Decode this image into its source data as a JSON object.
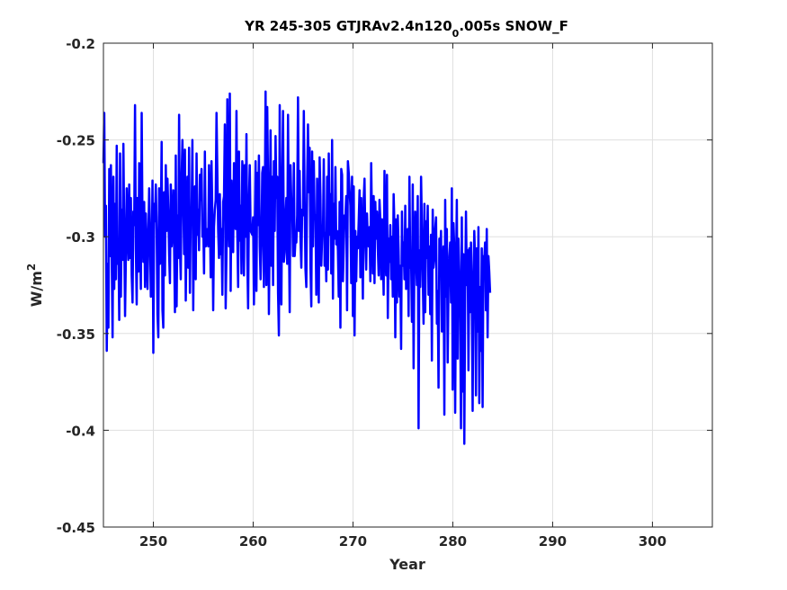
{
  "chart_data": {
    "type": "line",
    "title_parts": {
      "main": "YR 245-305 GTJRAv2.4n120",
      "subscript": "0",
      "rest": ".005s SNOW_F"
    },
    "xlabel": "Year",
    "ylabel_base": "W/m",
    "ylabel_sup": "2",
    "xlim": [
      245,
      306
    ],
    "ylim": [
      -0.45,
      -0.2
    ],
    "xticks": [
      250,
      260,
      270,
      280,
      290,
      300
    ],
    "xtick_labels": [
      "250",
      "260",
      "270",
      "280",
      "290",
      "300"
    ],
    "yticks": [
      -0.45,
      -0.4,
      -0.35,
      -0.3,
      -0.25,
      -0.2
    ],
    "ytick_labels": [
      "-0.45",
      "-0.4",
      "-0.35",
      "-0.3",
      "-0.25",
      "-0.2"
    ],
    "grid": true,
    "series": [
      {
        "color": "#0000ff",
        "x_start": 245,
        "x_step": 0.0833,
        "values": [
          -0.262,
          -0.236,
          -0.3,
          -0.284,
          -0.359,
          -0.314,
          -0.347,
          -0.265,
          -0.31,
          -0.263,
          -0.312,
          -0.352,
          -0.269,
          -0.327,
          -0.283,
          -0.322,
          -0.253,
          -0.314,
          -0.302,
          -0.343,
          -0.257,
          -0.331,
          -0.286,
          -0.312,
          -0.252,
          -0.297,
          -0.341,
          -0.31,
          -0.275,
          -0.298,
          -0.312,
          -0.273,
          -0.311,
          -0.28,
          -0.32,
          -0.334,
          -0.287,
          -0.294,
          -0.232,
          -0.306,
          -0.335,
          -0.28,
          -0.318,
          -0.262,
          -0.303,
          -0.327,
          -0.236,
          -0.296,
          -0.313,
          -0.282,
          -0.326,
          -0.288,
          -0.304,
          -0.327,
          -0.302,
          -0.275,
          -0.297,
          -0.331,
          -0.317,
          -0.271,
          -0.36,
          -0.283,
          -0.292,
          -0.273,
          -0.296,
          -0.34,
          -0.352,
          -0.275,
          -0.314,
          -0.294,
          -0.251,
          -0.338,
          -0.347,
          -0.277,
          -0.32,
          -0.263,
          -0.297,
          -0.27,
          -0.286,
          -0.309,
          -0.324,
          -0.273,
          -0.305,
          -0.297,
          -0.276,
          -0.305,
          -0.339,
          -0.258,
          -0.336,
          -0.289,
          -0.311,
          -0.237,
          -0.305,
          -0.322,
          -0.27,
          -0.25,
          -0.279,
          -0.309,
          -0.255,
          -0.333,
          -0.296,
          -0.269,
          -0.316,
          -0.254,
          -0.329,
          -0.285,
          -0.289,
          -0.25,
          -0.338,
          -0.288,
          -0.274,
          -0.322,
          -0.257,
          -0.299,
          -0.286,
          -0.307,
          -0.268,
          -0.281,
          -0.265,
          -0.3,
          -0.292,
          -0.319,
          -0.256,
          -0.305,
          -0.301,
          -0.296,
          -0.305,
          -0.263,
          -0.289,
          -0.321,
          -0.261,
          -0.289,
          -0.338,
          -0.295,
          -0.286,
          -0.281,
          -0.236,
          -0.267,
          -0.297,
          -0.311,
          -0.278,
          -0.309,
          -0.296,
          -0.33,
          -0.282,
          -0.279,
          -0.242,
          -0.337,
          -0.307,
          -0.229,
          -0.288,
          -0.305,
          -0.226,
          -0.328,
          -0.271,
          -0.291,
          -0.308,
          -0.262,
          -0.275,
          -0.296,
          -0.235,
          -0.298,
          -0.326,
          -0.256,
          -0.302,
          -0.284,
          -0.319,
          -0.261,
          -0.267,
          -0.32,
          -0.263,
          -0.3,
          -0.247,
          -0.31,
          -0.337,
          -0.282,
          -0.263,
          -0.297,
          -0.298,
          -0.299,
          -0.29,
          -0.335,
          -0.296,
          -0.261,
          -0.328,
          -0.267,
          -0.294,
          -0.258,
          -0.305,
          -0.322,
          -0.304,
          -0.267,
          -0.264,
          -0.326,
          -0.289,
          -0.225,
          -0.325,
          -0.233,
          -0.273,
          -0.34,
          -0.295,
          -0.245,
          -0.315,
          -0.269,
          -0.325,
          -0.261,
          -0.297,
          -0.248,
          -0.28,
          -0.269,
          -0.329,
          -0.351,
          -0.232,
          -0.315,
          -0.335,
          -0.267,
          -0.235,
          -0.313,
          -0.308,
          -0.289,
          -0.28,
          -0.314,
          -0.237,
          -0.295,
          -0.339,
          -0.263,
          -0.282,
          -0.282,
          -0.31,
          -0.262,
          -0.31,
          -0.301,
          -0.303,
          -0.289,
          -0.228,
          -0.297,
          -0.266,
          -0.301,
          -0.316,
          -0.286,
          -0.289,
          -0.235,
          -0.282,
          -0.317,
          -0.326,
          -0.271,
          -0.242,
          -0.277,
          -0.254,
          -0.315,
          -0.336,
          -0.256,
          -0.305,
          -0.261,
          -0.291,
          -0.289,
          -0.33,
          -0.27,
          -0.302,
          -0.334,
          -0.259,
          -0.279,
          -0.315,
          -0.3,
          -0.299,
          -0.26,
          -0.315,
          -0.298,
          -0.323,
          -0.269,
          -0.317,
          -0.257,
          -0.299,
          -0.278,
          -0.319,
          -0.25,
          -0.332,
          -0.283,
          -0.301,
          -0.264,
          -0.304,
          -0.297,
          -0.307,
          -0.331,
          -0.282,
          -0.347,
          -0.265,
          -0.268,
          -0.323,
          -0.305,
          -0.289,
          -0.29,
          -0.279,
          -0.338,
          -0.261,
          -0.267,
          -0.276,
          -0.284,
          -0.324,
          -0.269,
          -0.341,
          -0.274,
          -0.351,
          -0.297,
          -0.323,
          -0.3,
          -0.306,
          -0.292,
          -0.276,
          -0.321,
          -0.28,
          -0.303,
          -0.332,
          -0.281,
          -0.27,
          -0.302,
          -0.317,
          -0.288,
          -0.303,
          -0.305,
          -0.295,
          -0.323,
          -0.262,
          -0.294,
          -0.319,
          -0.279,
          -0.324,
          -0.282,
          -0.301,
          -0.287,
          -0.306,
          -0.32,
          -0.281,
          -0.291,
          -0.322,
          -0.291,
          -0.308,
          -0.33,
          -0.266,
          -0.307,
          -0.32,
          -0.268,
          -0.342,
          -0.301,
          -0.313,
          -0.294,
          -0.322,
          -0.3,
          -0.331,
          -0.278,
          -0.295,
          -0.352,
          -0.291,
          -0.334,
          -0.289,
          -0.307,
          -0.331,
          -0.315,
          -0.358,
          -0.287,
          -0.315,
          -0.303,
          -0.322,
          -0.284,
          -0.327,
          -0.305,
          -0.296,
          -0.341,
          -0.269,
          -0.316,
          -0.31,
          -0.344,
          -0.273,
          -0.368,
          -0.309,
          -0.287,
          -0.311,
          -0.325,
          -0.279,
          -0.399,
          -0.307,
          -0.326,
          -0.269,
          -0.295,
          -0.32,
          -0.345,
          -0.283,
          -0.339,
          -0.292,
          -0.311,
          -0.284,
          -0.33,
          -0.305,
          -0.34,
          -0.299,
          -0.364,
          -0.286,
          -0.316,
          -0.311,
          -0.296,
          -0.29,
          -0.345,
          -0.328,
          -0.378,
          -0.301,
          -0.309,
          -0.297,
          -0.349,
          -0.326,
          -0.305,
          -0.392,
          -0.281,
          -0.331,
          -0.296,
          -0.365,
          -0.326,
          -0.31,
          -0.303,
          -0.334,
          -0.275,
          -0.379,
          -0.293,
          -0.307,
          -0.391,
          -0.319,
          -0.281,
          -0.363,
          -0.301,
          -0.317,
          -0.338,
          -0.399,
          -0.29,
          -0.38,
          -0.309,
          -0.407,
          -0.331,
          -0.287,
          -0.325,
          -0.307,
          -0.369,
          -0.306,
          -0.339,
          -0.303,
          -0.332,
          -0.39,
          -0.324,
          -0.297,
          -0.312,
          -0.382,
          -0.306,
          -0.349,
          -0.295,
          -0.386,
          -0.326,
          -0.359,
          -0.306,
          -0.388,
          -0.31,
          -0.312,
          -0.303,
          -0.338,
          -0.296,
          -0.352,
          -0.31,
          -0.318,
          -0.329
        ]
      }
    ]
  }
}
